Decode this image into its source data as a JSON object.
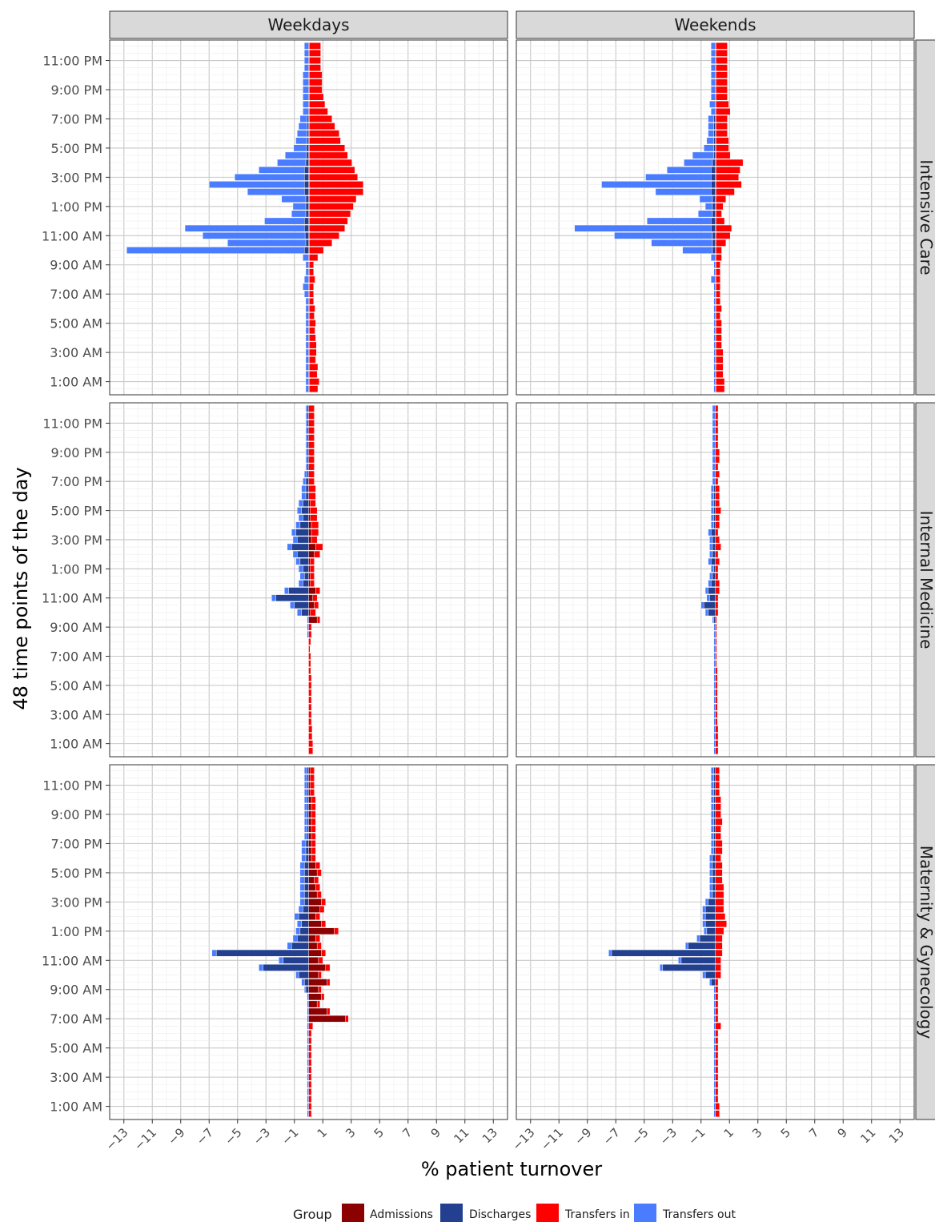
{
  "chart_data": {
    "type": "bar",
    "orientation": "horizontal",
    "stacked": true,
    "xlabel": "% patient turnover",
    "ylabel": "48 time points of the day",
    "xlim": [
      -14,
      14
    ],
    "x_ticks": [
      -13,
      -11,
      -9,
      -7,
      -5,
      -3,
      -1,
      1,
      3,
      5,
      7,
      9,
      11,
      13
    ],
    "y_tick_labels": [
      "1:00 AM",
      "3:00 AM",
      "5:00 AM",
      "7:00 AM",
      "9:00 AM",
      "11:00 AM",
      "1:00 PM",
      "3:00 PM",
      "5:00 PM",
      "7:00 PM",
      "9:00 PM",
      "11:00 PM"
    ],
    "y_tick_slots": [
      2,
      6,
      10,
      14,
      18,
      22,
      26,
      30,
      34,
      38,
      42,
      46
    ],
    "n_slots": 48,
    "columns": [
      "Weekdays",
      "Weekends"
    ],
    "rows": [
      "Intensive Care",
      "Internal Medicine",
      "Maternity & Gynecology"
    ],
    "grid": true,
    "legend": {
      "title": "Group",
      "position": "bottom",
      "entries": [
        {
          "label": "Admissions",
          "color": "#8b0000"
        },
        {
          "label": "Discharges",
          "color": "#22408f"
        },
        {
          "label": "Transfers in",
          "color": "#ff0000"
        },
        {
          "label": "Transfers out",
          "color": "#4a7cff"
        }
      ]
    },
    "colors": {
      "admissions": "#8b0000",
      "discharges": "#22408f",
      "transfers_in": "#ff0000",
      "transfers_out": "#4a7cff"
    },
    "panels": [
      {
        "row": "Intensive Care",
        "column": "Weekdays",
        "admissions": [
          0.05,
          0.05,
          0.05,
          0.05,
          0.05,
          0.05,
          0.05,
          0.05,
          0.05,
          0.05,
          0.05,
          0.05,
          0.05,
          0.05,
          0.05,
          0.05,
          0.05,
          0.05,
          0.05,
          0.05,
          0.05,
          0.05,
          0.05,
          0.05,
          0.05,
          0.05,
          0.05,
          0.05,
          0.05,
          0.05,
          0.05,
          0.05,
          0.05,
          0.05,
          0.05,
          0.05,
          0.05,
          0.05,
          0.05,
          0.05,
          0.05,
          0.05,
          0.05,
          0.05,
          0.05,
          0.05,
          0.05,
          0.05
        ],
        "discharges": [
          0,
          0,
          0,
          0,
          0,
          0,
          0,
          0,
          0,
          0,
          0,
          0,
          0,
          0,
          0,
          0,
          0,
          0,
          0,
          0.3,
          0.2,
          0.25,
          0.3,
          0.3,
          0.2,
          0.2,
          0.2,
          0.3,
          0.3,
          0.3,
          0.3,
          0.2,
          0.15,
          0.15,
          0.1,
          0.1,
          0.1,
          0.1,
          0,
          0,
          0,
          0,
          0,
          0,
          0,
          0,
          0,
          0
        ],
        "transfers_in": [
          0.6,
          0.7,
          0.55,
          0.6,
          0.45,
          0.5,
          0.5,
          0.45,
          0.4,
          0.45,
          0.35,
          0.4,
          0.3,
          0.3,
          0.3,
          0.4,
          0.3,
          0.3,
          0.6,
          1.0,
          1.6,
          2.1,
          2.5,
          2.7,
          2.9,
          3.1,
          3.3,
          3.8,
          3.8,
          3.4,
          3.2,
          3.0,
          2.7,
          2.5,
          2.2,
          2.1,
          1.8,
          1.6,
          1.3,
          1.1,
          1.0,
          0.9,
          0.9,
          0.9,
          0.8,
          0.8,
          0.8,
          0.8
        ],
        "transfers_out": [
          0.2,
          0.2,
          0.2,
          0.2,
          0.2,
          0.2,
          0.2,
          0.2,
          0.2,
          0.2,
          0.2,
          0.2,
          0.2,
          0.3,
          0.4,
          0.3,
          0.2,
          0.2,
          0.4,
          12.5,
          5.5,
          7.2,
          8.4,
          2.8,
          1.0,
          0.9,
          1.7,
          4.0,
          6.7,
          4.9,
          3.2,
          2.0,
          1.5,
          0.9,
          0.8,
          0.7,
          0.6,
          0.5,
          0.4,
          0.4,
          0.4,
          0.4,
          0.4,
          0.4,
          0.3,
          0.3,
          0.3,
          0.3
        ]
      },
      {
        "row": "Intensive Care",
        "column": "Weekends",
        "admissions": [
          0.05,
          0.05,
          0.05,
          0.05,
          0.05,
          0.05,
          0.05,
          0.05,
          0.05,
          0.05,
          0.05,
          0.05,
          0.05,
          0.05,
          0.05,
          0.05,
          0.05,
          0.05,
          0.05,
          0.05,
          0.05,
          0.05,
          0.05,
          0.05,
          0.05,
          0.05,
          0.05,
          0.05,
          0.05,
          0.05,
          0.05,
          0.05,
          0.05,
          0.05,
          0.05,
          0.05,
          0.05,
          0.05,
          0.05,
          0.05,
          0.05,
          0.05,
          0.05,
          0.05,
          0.05,
          0.05,
          0.05,
          0.05
        ],
        "discharges": [
          0,
          0,
          0,
          0,
          0,
          0,
          0,
          0,
          0,
          0,
          0,
          0,
          0,
          0,
          0,
          0,
          0,
          0,
          0,
          0.2,
          0.2,
          0.2,
          0.3,
          0.3,
          0.2,
          0.2,
          0.2,
          0.3,
          0.3,
          0.3,
          0.3,
          0.2,
          0.1,
          0.1,
          0.1,
          0.1,
          0.1,
          0.1,
          0,
          0,
          0,
          0,
          0,
          0,
          0,
          0,
          0,
          0
        ],
        "transfers_in": [
          0.6,
          0.6,
          0.5,
          0.5,
          0.5,
          0.5,
          0.4,
          0.4,
          0.4,
          0.4,
          0.3,
          0.4,
          0.3,
          0.3,
          0.3,
          0.3,
          0.3,
          0.3,
          0.4,
          0.4,
          0.7,
          1.0,
          1.1,
          0.6,
          0.4,
          0.5,
          0.7,
          1.3,
          1.8,
          1.6,
          1.7,
          1.9,
          1.0,
          0.9,
          0.9,
          0.8,
          0.8,
          0.8,
          1.0,
          0.9,
          0.8,
          0.8,
          0.8,
          0.8,
          0.8,
          0.8,
          0.8,
          0.8
        ],
        "transfers_out": [
          0.1,
          0.1,
          0.1,
          0.1,
          0.1,
          0.1,
          0.1,
          0.1,
          0.1,
          0.1,
          0.1,
          0.1,
          0.1,
          0.1,
          0.1,
          0.3,
          0.1,
          0.1,
          0.3,
          2.1,
          4.3,
          6.9,
          9.6,
          4.5,
          1.0,
          0.5,
          0.9,
          3.9,
          7.7,
          4.6,
          3.1,
          2.0,
          1.5,
          0.7,
          0.5,
          0.4,
          0.4,
          0.4,
          0.3,
          0.4,
          0.3,
          0.3,
          0.3,
          0.3,
          0.3,
          0.3,
          0.3,
          0.3
        ]
      },
      {
        "row": "Internal Medicine",
        "column": "Weekdays",
        "admissions": [
          0,
          0,
          0,
          0,
          0,
          0,
          0,
          0,
          0,
          0,
          0,
          0,
          0,
          0,
          0,
          0,
          0,
          0,
          0.6,
          0.1,
          0.4,
          0.3,
          0.5,
          0.1,
          0.1,
          0.1,
          0.1,
          0.4,
          0.5,
          0.2,
          0.2,
          0.2,
          0.1,
          0.1,
          0.1,
          0,
          0,
          0,
          0,
          0,
          0,
          0,
          0,
          0,
          0,
          0,
          0,
          0
        ],
        "discharges": [
          0,
          0,
          0,
          0,
          0,
          0,
          0,
          0,
          0,
          0,
          0,
          0,
          0,
          0,
          0,
          0,
          0,
          0,
          0,
          0.5,
          1.0,
          2.3,
          1.4,
          0.4,
          0.3,
          0.4,
          0.6,
          0.8,
          1.2,
          0.8,
          0.9,
          0.6,
          0.4,
          0.5,
          0.4,
          0.2,
          0.2,
          0.2,
          0.1,
          0.1,
          0.1,
          0.1,
          0.1,
          0.1,
          0.1,
          0.1,
          0.1,
          0.1
        ],
        "transfers_in": [
          0.3,
          0.3,
          0.25,
          0.25,
          0.2,
          0.2,
          0.2,
          0.2,
          0.2,
          0.2,
          0.2,
          0.15,
          0.15,
          0.15,
          0.1,
          0.15,
          0.2,
          0.2,
          0.2,
          0.4,
          0.3,
          0.3,
          0.3,
          0.3,
          0.3,
          0.3,
          0.3,
          0.4,
          0.5,
          0.4,
          0.5,
          0.5,
          0.5,
          0.5,
          0.4,
          0.5,
          0.5,
          0.4,
          0.4,
          0.4,
          0.4,
          0.4,
          0.4,
          0.4,
          0.4,
          0.4,
          0.4,
          0.4
        ],
        "transfers_out": [
          0,
          0,
          0,
          0,
          0,
          0,
          0,
          0,
          0,
          0,
          0,
          0,
          0,
          0,
          0,
          0,
          0.1,
          0.1,
          0.1,
          0.3,
          0.3,
          0.3,
          0.3,
          0.3,
          0.3,
          0.3,
          0.3,
          0.3,
          0.3,
          0.3,
          0.3,
          0.3,
          0.3,
          0.3,
          0.3,
          0.3,
          0.3,
          0.2,
          0.2,
          0.1,
          0.1,
          0.1,
          0.1,
          0.1,
          0.1,
          0.1,
          0.1,
          0.1
        ]
      },
      {
        "row": "Internal Medicine",
        "column": "Weekends",
        "admissions": [
          0,
          0,
          0,
          0,
          0,
          0,
          0,
          0,
          0,
          0,
          0,
          0,
          0,
          0,
          0,
          0,
          0,
          0,
          0,
          0,
          0,
          0,
          0,
          0,
          0,
          0,
          0,
          0,
          0,
          0,
          0,
          0,
          0,
          0,
          0,
          0,
          0,
          0,
          0,
          0,
          0,
          0,
          0,
          0,
          0,
          0,
          0,
          0
        ],
        "discharges": [
          0,
          0,
          0,
          0,
          0,
          0,
          0,
          0,
          0,
          0,
          0,
          0,
          0,
          0,
          0,
          0,
          0,
          0,
          0.1,
          0.5,
          0.8,
          0.4,
          0.5,
          0.3,
          0.2,
          0.1,
          0.3,
          0.2,
          0.2,
          0.2,
          0.3,
          0.1,
          0.1,
          0.1,
          0.1,
          0.1,
          0.1,
          0,
          0,
          0,
          0,
          0,
          0,
          0,
          0,
          0,
          0,
          0
        ],
        "transfers_in": [
          0.2,
          0.2,
          0.2,
          0.2,
          0.15,
          0.15,
          0.15,
          0.15,
          0.15,
          0.15,
          0.15,
          0.15,
          0.1,
          0.1,
          0.1,
          0.1,
          0.1,
          0.1,
          0.1,
          0.2,
          0.2,
          0.2,
          0.3,
          0.3,
          0.2,
          0.2,
          0.3,
          0.2,
          0.4,
          0.3,
          0.2,
          0.3,
          0.3,
          0.4,
          0.3,
          0.3,
          0.3,
          0.2,
          0.3,
          0.2,
          0.3,
          0.3,
          0.2,
          0.2,
          0.2,
          0.2,
          0.2,
          0.2
        ],
        "transfers_out": [
          0.1,
          0.1,
          0.1,
          0.1,
          0.1,
          0.1,
          0.1,
          0.1,
          0.1,
          0.1,
          0.1,
          0.1,
          0.1,
          0.1,
          0.1,
          0.1,
          0.1,
          0.1,
          0.1,
          0.2,
          0.2,
          0.2,
          0.2,
          0.2,
          0.2,
          0.2,
          0.2,
          0.2,
          0.2,
          0.2,
          0.2,
          0.2,
          0.2,
          0.2,
          0.2,
          0.2,
          0.2,
          0.2,
          0.2,
          0.2,
          0.2,
          0.2,
          0.2,
          0.2,
          0.2,
          0.2,
          0.2,
          0.2
        ]
      },
      {
        "row": "Maternity & Gynecology",
        "column": "Weekdays",
        "admissions": [
          0,
          0,
          0,
          0,
          0,
          0,
          0,
          0,
          0,
          0,
          0,
          0,
          0,
          2.6,
          1.3,
          0.6,
          0.9,
          0.7,
          1.3,
          0.7,
          1.2,
          0.7,
          0.9,
          0.6,
          0.5,
          1.8,
          0.9,
          0.5,
          0.8,
          0.9,
          0.6,
          0.5,
          0.4,
          0.6,
          0.5,
          0.2,
          0.2,
          0.2,
          0.2,
          0.2,
          0.2,
          0.2,
          0.2,
          0.2,
          0.1,
          0.1,
          0.1,
          0.1
        ],
        "discharges": [
          0,
          0,
          0,
          0,
          0,
          0,
          0,
          0,
          0,
          0,
          0,
          0,
          0,
          0,
          0,
          0,
          0,
          0.2,
          0.3,
          0.7,
          3.2,
          1.8,
          6.5,
          1.2,
          0.8,
          0.6,
          0.5,
          0.7,
          0.4,
          0.3,
          0.3,
          0.3,
          0.3,
          0.3,
          0.3,
          0.2,
          0.2,
          0.2,
          0.1,
          0.1,
          0.1,
          0.1,
          0.1,
          0.1,
          0.1,
          0.1,
          0.1,
          0.1
        ],
        "transfers_in": [
          0.2,
          0.2,
          0.2,
          0.2,
          0.2,
          0.2,
          0.2,
          0.2,
          0.2,
          0.2,
          0.2,
          0.2,
          0.3,
          0.2,
          0.2,
          0.2,
          0.2,
          0.2,
          0.2,
          0.2,
          0.3,
          0.3,
          0.3,
          0.3,
          0.3,
          0.3,
          0.3,
          0.3,
          0.3,
          0.3,
          0.3,
          0.3,
          0.3,
          0.3,
          0.3,
          0.3,
          0.3,
          0.3,
          0.3,
          0.3,
          0.3,
          0.3,
          0.3,
          0.3,
          0.3,
          0.3,
          0.3,
          0.3
        ],
        "transfers_out": [
          0.1,
          0.1,
          0.1,
          0.1,
          0.1,
          0.1,
          0.1,
          0.1,
          0.1,
          0.1,
          0.1,
          0.1,
          0.1,
          0.1,
          0.1,
          0.1,
          0.1,
          0.1,
          0.2,
          0.2,
          0.3,
          0.3,
          0.3,
          0.3,
          0.3,
          0.3,
          0.3,
          0.3,
          0.3,
          0.3,
          0.3,
          0.3,
          0.3,
          0.3,
          0.3,
          0.3,
          0.3,
          0.3,
          0.2,
          0.2,
          0.2,
          0.2,
          0.2,
          0.2,
          0.2,
          0.2,
          0.2,
          0.2
        ]
      },
      {
        "row": "Maternity & Gynecology",
        "column": "Weekends",
        "admissions": [
          0,
          0,
          0,
          0,
          0,
          0,
          0,
          0,
          0,
          0,
          0,
          0,
          0,
          0,
          0,
          0,
          0,
          0,
          0,
          0,
          0,
          0,
          0,
          0,
          0,
          0,
          0,
          0,
          0,
          0,
          0,
          0,
          0,
          0,
          0,
          0,
          0,
          0,
          0,
          0,
          0,
          0,
          0,
          0,
          0,
          0,
          0,
          0
        ],
        "discharges": [
          0,
          0,
          0,
          0,
          0,
          0,
          0,
          0,
          0,
          0,
          0,
          0,
          0,
          0,
          0,
          0,
          0,
          0,
          0.3,
          0.7,
          3.7,
          2.4,
          7.3,
          1.9,
          1.1,
          0.6,
          0.7,
          0.7,
          0.7,
          0.5,
          0.2,
          0.2,
          0.2,
          0.2,
          0.2,
          0.2,
          0.1,
          0.1,
          0.1,
          0.1,
          0.1,
          0.1,
          0.1,
          0.1,
          0.1,
          0.1,
          0.1,
          0.1
        ],
        "transfers_in": [
          0.3,
          0.3,
          0.2,
          0.2,
          0.2,
          0.2,
          0.2,
          0.2,
          0.2,
          0.2,
          0.2,
          0.2,
          0.4,
          0.2,
          0.2,
          0.2,
          0.2,
          0.2,
          0.2,
          0.4,
          0.4,
          0.4,
          0.5,
          0.5,
          0.5,
          0.6,
          0.8,
          0.7,
          0.6,
          0.6,
          0.6,
          0.6,
          0.5,
          0.5,
          0.5,
          0.4,
          0.5,
          0.5,
          0.4,
          0.4,
          0.5,
          0.4,
          0.4,
          0.4,
          0.3,
          0.3,
          0.3,
          0.3
        ],
        "transfers_out": [
          0.1,
          0.1,
          0.1,
          0.1,
          0.1,
          0.1,
          0.1,
          0.1,
          0.1,
          0.1,
          0.1,
          0.1,
          0.1,
          0.1,
          0.1,
          0.1,
          0.1,
          0.1,
          0.1,
          0.2,
          0.2,
          0.2,
          0.2,
          0.2,
          0.2,
          0.2,
          0.2,
          0.2,
          0.2,
          0.2,
          0.2,
          0.2,
          0.2,
          0.2,
          0.2,
          0.2,
          0.2,
          0.2,
          0.2,
          0.2,
          0.2,
          0.2,
          0.2,
          0.2,
          0.2,
          0.2,
          0.2,
          0.2
        ]
      }
    ]
  }
}
